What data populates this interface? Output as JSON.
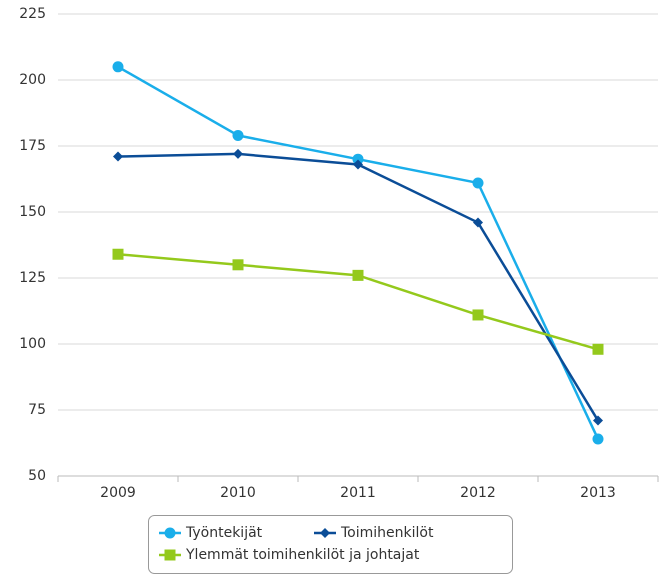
{
  "chart_data": {
    "type": "line",
    "categories": [
      "2009",
      "2010",
      "2011",
      "2012",
      "2013"
    ],
    "series": [
      {
        "name": "Työntekijät",
        "color": "#1aaeea",
        "marker": "circle",
        "values": [
          205,
          179,
          170,
          161,
          64
        ]
      },
      {
        "name": "Toimihenkilöt",
        "color": "#0b4d97",
        "marker": "diamond",
        "values": [
          171,
          172,
          168,
          146,
          71
        ]
      },
      {
        "name": "Ylemmät toimihenkilöt ja johtajat",
        "color": "#94c91c",
        "marker": "square",
        "values": [
          134,
          130,
          126,
          111,
          98
        ]
      }
    ],
    "ylim": [
      50,
      225
    ],
    "yticks": [
      50,
      75,
      100,
      125,
      150,
      175,
      200,
      225
    ],
    "grid": true,
    "legend": "bottom"
  }
}
